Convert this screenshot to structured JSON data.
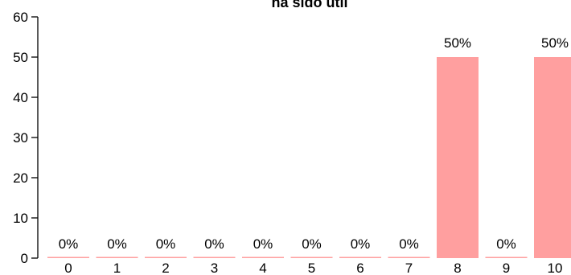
{
  "chart_data": {
    "type": "bar",
    "title": "ha sido útil",
    "categories": [
      "0",
      "1",
      "2",
      "3",
      "4",
      "5",
      "6",
      "7",
      "8",
      "9",
      "10"
    ],
    "values": [
      0,
      0,
      0,
      0,
      0,
      0,
      0,
      0,
      50,
      0,
      50
    ],
    "data_labels": [
      "0%",
      "0%",
      "0%",
      "0%",
      "0%",
      "0%",
      "0%",
      "0%",
      "50%",
      "0%",
      "50%"
    ],
    "ylim": [
      0,
      60
    ],
    "yticks": [
      0,
      10,
      20,
      30,
      40,
      50,
      60
    ],
    "grid": false,
    "bar_color": "#ff9f9f"
  }
}
